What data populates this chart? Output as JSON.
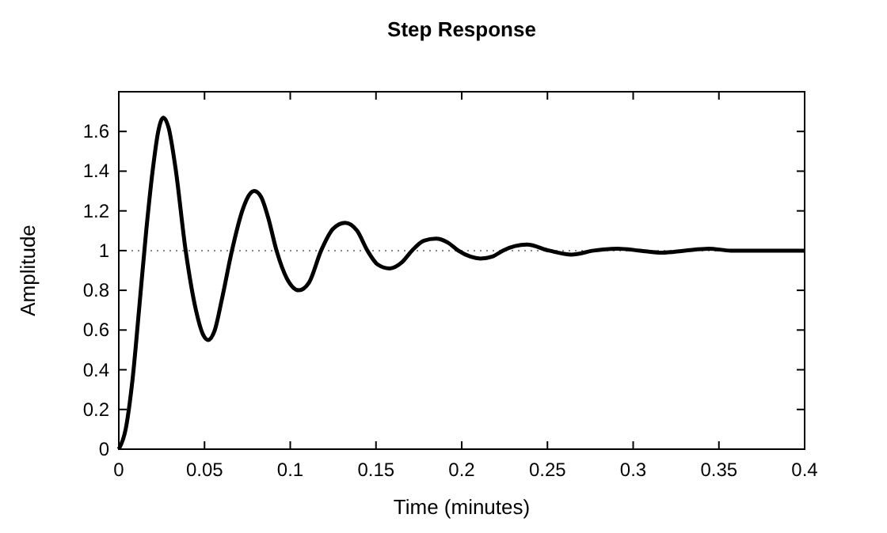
{
  "chart_data": {
    "type": "line",
    "title": "Step Response",
    "xlabel": "Time (minutes)",
    "ylabel": "Amplitude",
    "x": [
      0,
      0.004,
      0.008,
      0.012,
      0.016,
      0.02,
      0.023,
      0.026,
      0.029,
      0.033,
      0.039,
      0.045,
      0.049,
      0.052,
      0.056,
      0.06,
      0.066,
      0.072,
      0.076,
      0.079,
      0.083,
      0.087,
      0.092,
      0.098,
      0.105,
      0.111,
      0.118,
      0.125,
      0.132,
      0.139,
      0.145,
      0.151,
      0.158,
      0.165,
      0.171,
      0.178,
      0.185,
      0.192,
      0.198,
      0.205,
      0.211,
      0.218,
      0.224,
      0.238,
      0.251,
      0.264,
      0.277,
      0.291,
      0.304,
      0.317,
      0.33,
      0.344,
      0.357,
      0.37,
      0.4
    ],
    "series": [
      {
        "color": "#000000",
        "values": [
          0,
          0.1,
          0.35,
          0.72,
          1.1,
          1.42,
          1.6,
          1.67,
          1.62,
          1.42,
          1.0,
          0.7,
          0.58,
          0.55,
          0.6,
          0.75,
          1.0,
          1.2,
          1.28,
          1.3,
          1.27,
          1.17,
          1.0,
          0.86,
          0.8,
          0.84,
          1.0,
          1.11,
          1.14,
          1.1,
          1.0,
          0.93,
          0.91,
          0.94,
          1.0,
          1.05,
          1.06,
          1.04,
          1.0,
          0.97,
          0.96,
          0.97,
          1.0,
          1.03,
          1.0,
          0.98,
          1.0,
          1.01,
          1.0,
          0.99,
          1.0,
          1.01,
          1.0,
          1.0,
          1.0
        ]
      }
    ],
    "xlim": [
      0,
      0.4
    ],
    "xticks": [
      0,
      0.05,
      0.1,
      0.15,
      0.2,
      0.25,
      0.3,
      0.35,
      0.4
    ],
    "ylim": [
      0,
      1.8
    ],
    "yticks": [
      0,
      0.2,
      0.4,
      0.6,
      0.8,
      1,
      1.2,
      1.4,
      1.6
    ],
    "ref_lines": [
      {
        "axis": "y",
        "value": 1,
        "color": "#888888",
        "line_style": "dotted"
      }
    ],
    "grid": false,
    "marker": "none",
    "line_style": "solid"
  }
}
